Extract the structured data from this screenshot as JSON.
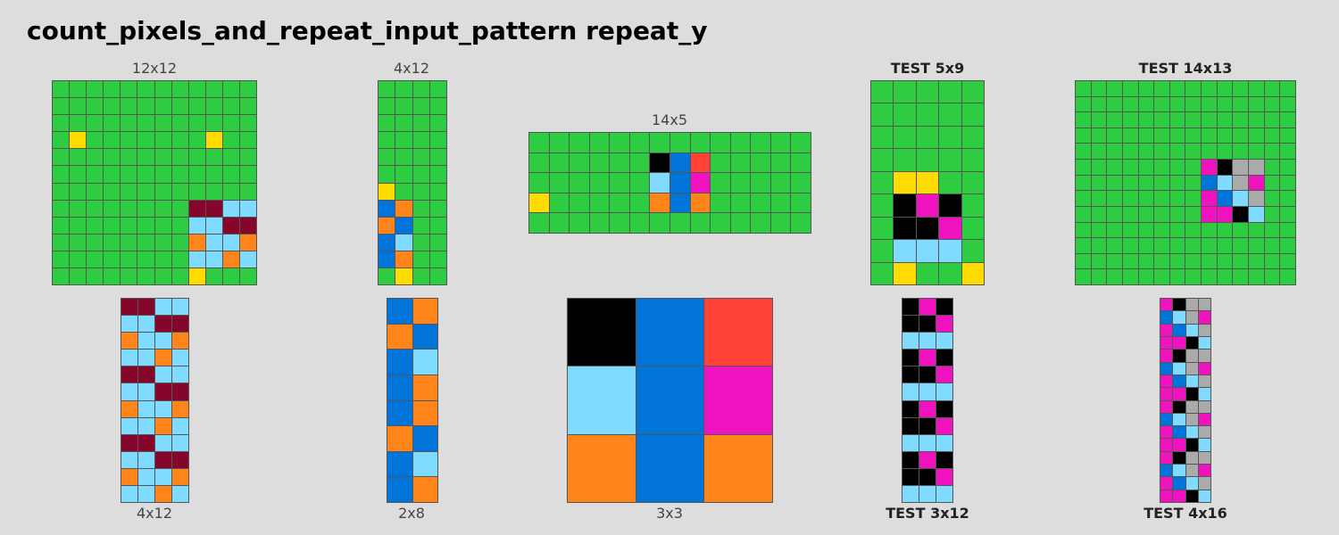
{
  "title": "count_pixels_and_repeat_input_pattern repeat_y",
  "palette": {
    "G": "#2ECC40",
    "Y": "#FFDC00",
    "M": "#85062A",
    "L": "#7FDBFF",
    "O": "#FF851B",
    "B": "#0074D9",
    "K": "#000000",
    "R": "#FF4136",
    "P": "#F012BE",
    "A": "#AAAAAA"
  },
  "grids": [
    {
      "name": "example-1-input",
      "label": "12x12",
      "is_test": false,
      "rows": [
        "GGGGGGGGGGGG",
        "GGGGGGGGGGGG",
        "GGGGGGGGGGGG",
        "GYGGGGGGGYGG",
        "GGGGGGGGGGGG",
        "GGGGGGGGGGGG",
        "GGGGGGGGGGGG",
        "GGGGGGGGMMLL",
        "GGGGGGGGLLMM",
        "GGGGGGGGOLLO",
        "GGGGGGGGLLOL",
        "GGGGGGGGYGGG"
      ]
    },
    {
      "name": "example-1-output",
      "label": "4x12",
      "is_test": false,
      "rows": [
        "MMLL",
        "LLMM",
        "OLLO",
        "LLOL",
        "MMLL",
        "LLMM",
        "OLLO",
        "LLOL",
        "MMLL",
        "LLMM",
        "OLLO",
        "LLOL"
      ]
    },
    {
      "name": "example-2-input",
      "label": "4x12",
      "is_test": false,
      "rows": [
        "GGGG",
        "GGGG",
        "GGGG",
        "GGGG",
        "GGGG",
        "GGGG",
        "YGGG",
        "BOGG",
        "OBGG",
        "BLGG",
        "BOGG",
        "GYGG"
      ]
    },
    {
      "name": "example-2-output",
      "label": "2x8",
      "is_test": false,
      "rows": [
        "BO",
        "OB",
        "BL",
        "BO",
        "BO",
        "OB",
        "BL",
        "BO"
      ]
    },
    {
      "name": "example-3-input",
      "label": "14x5",
      "is_test": false,
      "rows": [
        "GGGGGGGGGGGGGG",
        "GGGGGGKBRGGGGG",
        "GGGGGGLBPGGGGG",
        "YGGGGGOBOGGGGG",
        "GGGGGGGGGGGGGG"
      ]
    },
    {
      "name": "example-3-output",
      "label": "3x3",
      "is_test": false,
      "rows": [
        "KBR",
        "LBP",
        "OBO"
      ]
    },
    {
      "name": "test-1-input",
      "label": "TEST 5x9",
      "is_test": true,
      "rows": [
        "GGGGG",
        "GGGGG",
        "GGGGG",
        "GGGGG",
        "GYYGG",
        "GKPKG",
        "GKKPG",
        "GLLLG",
        "GYGGY"
      ]
    },
    {
      "name": "test-1-output",
      "label": "TEST 3x12",
      "is_test": true,
      "rows": [
        "KPK",
        "KKP",
        "LLL",
        "KPK",
        "KKP",
        "LLL",
        "KPK",
        "KKP",
        "LLL",
        "KPK",
        "KKP",
        "LLL"
      ]
    },
    {
      "name": "test-2-input",
      "label": "TEST 14x13",
      "is_test": true,
      "rows": [
        "GGGGGGGGGGGGGG",
        "GGGGGGGGGGGGGG",
        "GGGGGGGGGGGGGG",
        "GGGGGGGGGGGGGG",
        "GGGGGGGGGGGGGG",
        "GGGGGGGGPKAAGG",
        "GGGGGGGGBLAPGG",
        "GGGGGGGGPBLAGG",
        "GGGGGGGGPPKLGG",
        "GGGGGGGGGGGGGG",
        "GGGGGGGGGGGGGG",
        "GGGGGGGGGGGGGG",
        "GGGGGGGGGGGGGG"
      ]
    },
    {
      "name": "test-2-output",
      "label": "TEST 4x16",
      "is_test": true,
      "rows": [
        "PKAA",
        "BLAP",
        "PBLA",
        "PPKL",
        "PKAA",
        "BLAP",
        "PBLA",
        "PPKL",
        "PKAA",
        "BLAP",
        "PBLA",
        "PPKL",
        "PKAA",
        "BLAP",
        "PBLA",
        "PPKL"
      ]
    }
  ]
}
